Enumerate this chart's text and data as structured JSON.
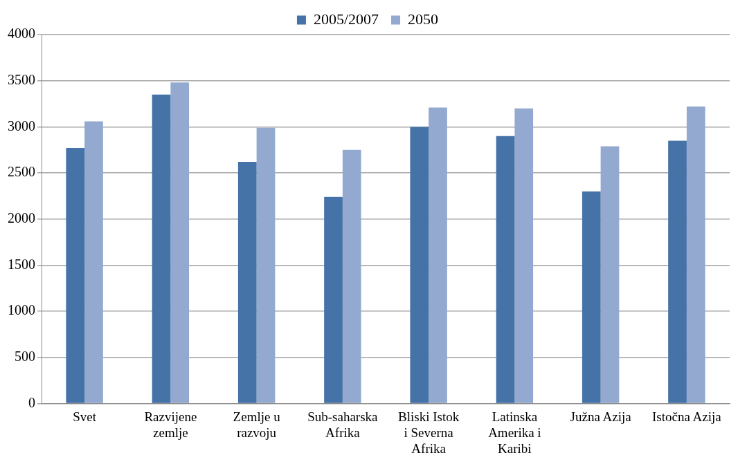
{
  "chart_data": {
    "type": "bar",
    "categories": [
      "Svet",
      "Razvijene zemlje",
      "Zemlje u razvoju",
      "Sub-saharska Afrika",
      "Bliski Istok i Severna Afrika",
      "Latinska Amerika i Karibi",
      "Južna Azija",
      "Istočna Azija"
    ],
    "series": [
      {
        "name": "2005/2007",
        "color": "#4572a7",
        "values": [
          2770,
          3350,
          2620,
          2240,
          3000,
          2900,
          2300,
          2850
        ]
      },
      {
        "name": "2050",
        "color": "#93a9cf",
        "values": [
          3060,
          3480,
          2990,
          2750,
          3210,
          3200,
          2790,
          3220
        ]
      }
    ],
    "ylim": [
      0,
      4000
    ],
    "yticks": [
      0,
      500,
      1000,
      1500,
      2000,
      2500,
      3000,
      3500,
      4000
    ],
    "grid": "y",
    "legend": "top"
  }
}
